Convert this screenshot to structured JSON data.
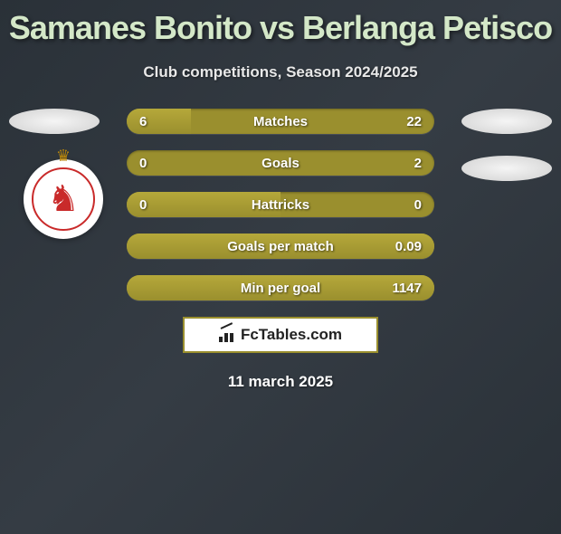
{
  "header": {
    "title": "Samanes Bonito vs Berlanga Petisco",
    "subtitle": "Club competitions, Season 2024/2025",
    "title_color": "#d4e8c8",
    "title_fontsize": 36
  },
  "club": {
    "name": "Cultural Leonesa",
    "crown_color": "#b8860b",
    "ring_color": "#c92a2a",
    "lion_color": "#c92a2a"
  },
  "stats": {
    "bar_bg_color": "#9a8f2e",
    "bar_fill_color": "#b5a83a",
    "rows": [
      {
        "label": "Matches",
        "left": "6",
        "right": "22",
        "left_pct": 21
      },
      {
        "label": "Goals",
        "left": "0",
        "right": "2",
        "left_pct": 0
      },
      {
        "label": "Hattricks",
        "left": "0",
        "right": "0",
        "left_pct": 50
      },
      {
        "label": "Goals per match",
        "left": "",
        "right": "0.09",
        "left_pct": 100
      },
      {
        "label": "Min per goal",
        "left": "",
        "right": "1147",
        "left_pct": 100
      }
    ]
  },
  "brand": {
    "text": "FcTables.com"
  },
  "date": {
    "label": "11 march 2025"
  },
  "decoration": {
    "ellipse_color": "#f5f5f5"
  }
}
